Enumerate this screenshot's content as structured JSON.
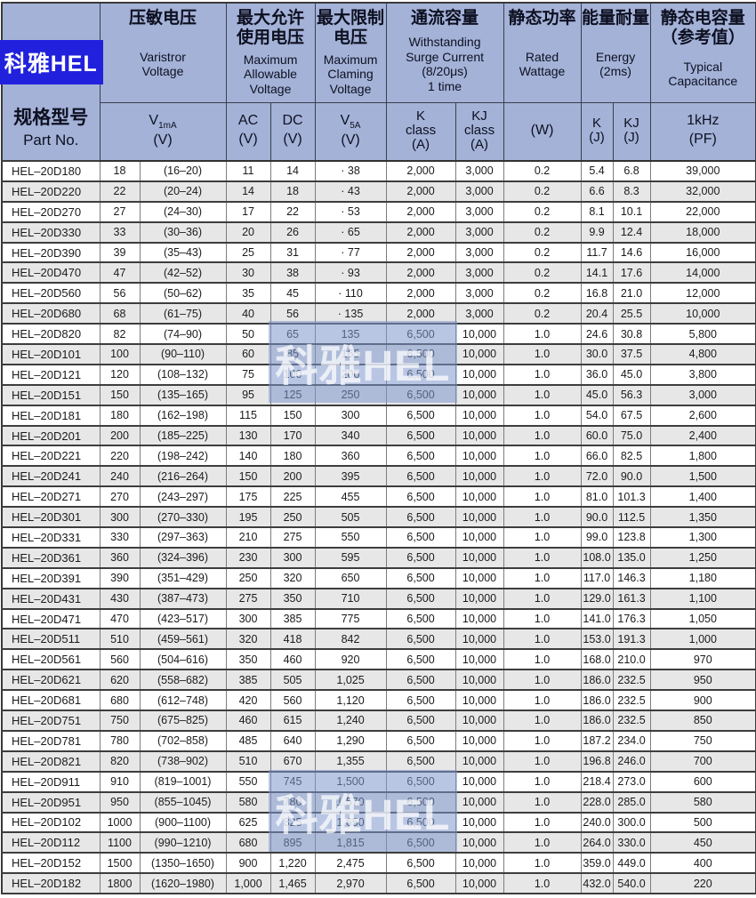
{
  "brand": {
    "logo_text": "科雅HEL"
  },
  "corner": {
    "cn": "规格型号",
    "en": "Part No."
  },
  "groups": {
    "varistor": {
      "cn": "压敏电压",
      "en": "Varistror\nVoltage"
    },
    "max_allowable": {
      "cn": "最大允许\n使用电压",
      "en": "Maximum\nAllowable\nVoltage"
    },
    "max_clamping": {
      "cn": "最大限制\n电压",
      "en": "Maximum\nClaming\nVoltage"
    },
    "surge": {
      "cn": "通流容量",
      "en": "Withstanding\nSurge Current\n(8/20μs)\n1 time"
    },
    "wattage": {
      "cn": "静态功率",
      "en": "Rated\nWattage"
    },
    "energy": {
      "cn": "能量耐量",
      "en": "Energy\n(2ms)"
    },
    "capacitance": {
      "cn": "静态电容量\n（参考值）",
      "en": "Typical\nCapacitance"
    }
  },
  "subheaders": {
    "v1ma": {
      "base": "V",
      "sub": "1mA",
      "unit": "(V)"
    },
    "ac": {
      "label": "AC",
      "unit": "(V)"
    },
    "dc": {
      "label": "DC",
      "unit": "(V)"
    },
    "v5a": {
      "base": "V",
      "sub": "5A",
      "unit": "(V)"
    },
    "k_class": "K\nclass\n(A)",
    "kj_class": "KJ\nclass\n(A)",
    "w": "(W)",
    "k_j": "K\n(J)",
    "kj_j": "KJ\n(J)",
    "khz": "1kHz\n(PF)"
  },
  "watermark": {
    "text": "科雅HEL"
  },
  "colors": {
    "header_bg": "#a4b2d8",
    "logo_bg": "#2121dd",
    "row_alt": "#e7e7e7",
    "watermark_tint": "rgba(128,152,204,0.55)"
  },
  "table": {
    "rows": [
      [
        "HEL–20D180",
        "18",
        "(16–20)",
        "11",
        "14",
        "· 38",
        "2,000",
        "3,000",
        "0.2",
        "5.4",
        "6.8",
        "39,000"
      ],
      [
        "HEL–20D220",
        "22",
        "(20–24)",
        "14",
        "18",
        "· 43",
        "2,000",
        "3,000",
        "0.2",
        "6.6",
        "8.3",
        "32,000"
      ],
      [
        "HEL–20D270",
        "27",
        "(24–30)",
        "17",
        "22",
        "· 53",
        "2,000",
        "3,000",
        "0.2",
        "8.1",
        "10.1",
        "22,000"
      ],
      [
        "HEL–20D330",
        "33",
        "(30–36)",
        "20",
        "26",
        "· 65",
        "2,000",
        "3,000",
        "0.2",
        "9.9",
        "12.4",
        "18,000"
      ],
      [
        "HEL–20D390",
        "39",
        "(35–43)",
        "25",
        "31",
        "· 77",
        "2,000",
        "3,000",
        "0.2",
        "11.7",
        "14.6",
        "16,000"
      ],
      [
        "HEL–20D470",
        "47",
        "(42–52)",
        "30",
        "38",
        "· 93",
        "2,000",
        "3,000",
        "0.2",
        "14.1",
        "17.6",
        "14,000"
      ],
      [
        "HEL–20D560",
        "56",
        "(50–62)",
        "35",
        "45",
        "· 110",
        "2,000",
        "3,000",
        "0.2",
        "16.8",
        "21.0",
        "12,000"
      ],
      [
        "HEL–20D680",
        "68",
        "(61–75)",
        "40",
        "56",
        "· 135",
        "2,000",
        "3,000",
        "0.2",
        "20.4",
        "25.5",
        "10,000"
      ],
      [
        "HEL–20D820",
        "82",
        "(74–90)",
        "50",
        "65",
        "135",
        "6,500",
        "10,000",
        "1.0",
        "24.6",
        "30.8",
        "5,800"
      ],
      [
        "HEL–20D101",
        "100",
        "(90–110)",
        "60",
        "85",
        "165",
        "6,500",
        "10,000",
        "1.0",
        "30.0",
        "37.5",
        "4,800"
      ],
      [
        "HEL–20D121",
        "120",
        "(108–132)",
        "75",
        "100",
        "200",
        "6,500",
        "10,000",
        "1.0",
        "36.0",
        "45.0",
        "3,800"
      ],
      [
        "HEL–20D151",
        "150",
        "(135–165)",
        "95",
        "125",
        "250",
        "6,500",
        "10,000",
        "1.0",
        "45.0",
        "56.3",
        "3,000"
      ],
      [
        "HEL–20D181",
        "180",
        "(162–198)",
        "115",
        "150",
        "300",
        "6,500",
        "10,000",
        "1.0",
        "54.0",
        "67.5",
        "2,600"
      ],
      [
        "HEL–20D201",
        "200",
        "(185–225)",
        "130",
        "170",
        "340",
        "6,500",
        "10,000",
        "1.0",
        "60.0",
        "75.0",
        "2,400"
      ],
      [
        "HEL–20D221",
        "220",
        "(198–242)",
        "140",
        "180",
        "360",
        "6,500",
        "10,000",
        "1.0",
        "66.0",
        "82.5",
        "1,800"
      ],
      [
        "HEL–20D241",
        "240",
        "(216–264)",
        "150",
        "200",
        "395",
        "6,500",
        "10,000",
        "1.0",
        "72.0",
        "90.0",
        "1,500"
      ],
      [
        "HEL–20D271",
        "270",
        "(243–297)",
        "175",
        "225",
        "455",
        "6,500",
        "10,000",
        "1.0",
        "81.0",
        "101.3",
        "1,400"
      ],
      [
        "HEL–20D301",
        "300",
        "(270–330)",
        "195",
        "250",
        "505",
        "6,500",
        "10,000",
        "1.0",
        "90.0",
        "112.5",
        "1,350"
      ],
      [
        "HEL–20D331",
        "330",
        "(297–363)",
        "210",
        "275",
        "550",
        "6,500",
        "10,000",
        "1.0",
        "99.0",
        "123.8",
        "1,300"
      ],
      [
        "HEL–20D361",
        "360",
        "(324–396)",
        "230",
        "300",
        "595",
        "6,500",
        "10,000",
        "1.0",
        "108.0",
        "135.0",
        "1,250"
      ],
      [
        "HEL–20D391",
        "390",
        "(351–429)",
        "250",
        "320",
        "650",
        "6,500",
        "10,000",
        "1.0",
        "117.0",
        "146.3",
        "1,180"
      ],
      [
        "HEL–20D431",
        "430",
        "(387–473)",
        "275",
        "350",
        "710",
        "6,500",
        "10,000",
        "1.0",
        "129.0",
        "161.3",
        "1,100"
      ],
      [
        "HEL–20D471",
        "470",
        "(423–517)",
        "300",
        "385",
        "775",
        "6,500",
        "10,000",
        "1.0",
        "141.0",
        "176.3",
        "1,050"
      ],
      [
        "HEL–20D511",
        "510",
        "(459–561)",
        "320",
        "418",
        "842",
        "6,500",
        "10,000",
        "1.0",
        "153.0",
        "191.3",
        "1,000"
      ],
      [
        "HEL–20D561",
        "560",
        "(504–616)",
        "350",
        "460",
        "920",
        "6,500",
        "10,000",
        "1.0",
        "168.0",
        "210.0",
        "970"
      ],
      [
        "HEL–20D621",
        "620",
        "(558–682)",
        "385",
        "505",
        "1,025",
        "6,500",
        "10,000",
        "1.0",
        "186.0",
        "232.5",
        "950"
      ],
      [
        "HEL–20D681",
        "680",
        "(612–748)",
        "420",
        "560",
        "1,120",
        "6,500",
        "10,000",
        "1.0",
        "186.0",
        "232.5",
        "900"
      ],
      [
        "HEL–20D751",
        "750",
        "(675–825)",
        "460",
        "615",
        "1,240",
        "6,500",
        "10,000",
        "1.0",
        "186.0",
        "232.5",
        "850"
      ],
      [
        "HEL–20D781",
        "780",
        "(702–858)",
        "485",
        "640",
        "1,290",
        "6,500",
        "10,000",
        "1.0",
        "187.2",
        "234.0",
        "750"
      ],
      [
        "HEL–20D821",
        "820",
        "(738–902)",
        "510",
        "670",
        "1,355",
        "6,500",
        "10,000",
        "1.0",
        "196.8",
        "246.0",
        "700"
      ],
      [
        "HEL–20D911",
        "910",
        "(819–1001)",
        "550",
        "745",
        "1,500",
        "6,500",
        "10,000",
        "1.0",
        "218.4",
        "273.0",
        "600"
      ],
      [
        "HEL–20D951",
        "950",
        "(855–1045)",
        "580",
        "780",
        "1,570",
        "6,500",
        "10,000",
        "1.0",
        "228.0",
        "285.0",
        "580"
      ],
      [
        "HEL–20D102",
        "1000",
        "(900–1100)",
        "625",
        "825",
        "1,650",
        "6,500",
        "10,000",
        "1.0",
        "240.0",
        "300.0",
        "500"
      ],
      [
        "HEL–20D112",
        "1100",
        "(990–1210)",
        "680",
        "895",
        "1,815",
        "6,500",
        "10,000",
        "1.0",
        "264.0",
        "330.0",
        "450"
      ],
      [
        "HEL–20D152",
        "1500",
        "(1350–1650)",
        "900",
        "1,220",
        "2,475",
        "6,500",
        "10,000",
        "1.0",
        "359.0",
        "449.0",
        "400"
      ],
      [
        "HEL–20D182",
        "1800",
        "(1620–1980)",
        "1,000",
        "1,465",
        "2,970",
        "6,500",
        "10,000",
        "1.0",
        "432.0",
        "540.0",
        "220"
      ]
    ]
  }
}
